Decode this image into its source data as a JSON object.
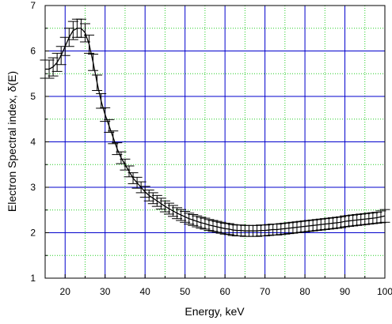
{
  "chart_data": {
    "type": "line",
    "xlabel": "Energy, keV",
    "ylabel": "Electron Spectral index, δ(E)",
    "xlim": [
      15,
      100
    ],
    "ylim": [
      1,
      7
    ],
    "x_ticks": [
      20,
      30,
      40,
      50,
      60,
      70,
      80,
      90,
      100
    ],
    "y_ticks": [
      1,
      2,
      3,
      4,
      5,
      6,
      7
    ],
    "x_tick_labels": [
      "20",
      "30",
      "40",
      "50",
      "60",
      "70",
      "80",
      "90",
      "100"
    ],
    "y_tick_labels": [
      "1",
      "2",
      "3",
      "4",
      "5",
      "6",
      "7"
    ],
    "grid": {
      "major": true,
      "minor": true,
      "major_color": "#0000cc",
      "minor_color": "#22cc22"
    },
    "colors": {
      "line": "#000000",
      "error_bars": "#000000",
      "axes": "#000000"
    },
    "series": [
      {
        "x": [
          15,
          16,
          17,
          18,
          19,
          20,
          21,
          22,
          23,
          24,
          25,
          26,
          27,
          28,
          29,
          30,
          31,
          32,
          33,
          34,
          35,
          36,
          37,
          38,
          39,
          40,
          41,
          42,
          43,
          44,
          45,
          46,
          47,
          48,
          49,
          50,
          51,
          52,
          53,
          54,
          55,
          56,
          57,
          58,
          59,
          60,
          61,
          62,
          63,
          64,
          65,
          66,
          67,
          68,
          69,
          70,
          71,
          72,
          73,
          74,
          75,
          76,
          77,
          78,
          79,
          80,
          81,
          82,
          83,
          84,
          85,
          86,
          87,
          88,
          89,
          90,
          91,
          92,
          93,
          94,
          95,
          96,
          97,
          98,
          99,
          100
        ],
        "y": [
          5.6,
          5.6,
          5.65,
          5.75,
          5.9,
          6.1,
          6.3,
          6.45,
          6.5,
          6.5,
          6.4,
          6.15,
          5.75,
          5.3,
          4.9,
          4.6,
          4.35,
          4.1,
          3.85,
          3.65,
          3.5,
          3.35,
          3.2,
          3.1,
          3.0,
          2.9,
          2.82,
          2.76,
          2.7,
          2.64,
          2.58,
          2.53,
          2.48,
          2.43,
          2.39,
          2.35,
          2.31,
          2.28,
          2.25,
          2.22,
          2.2,
          2.17,
          2.15,
          2.13,
          2.11,
          2.09,
          2.08,
          2.06,
          2.05,
          2.05,
          2.04,
          2.04,
          2.04,
          2.04,
          2.05,
          2.05,
          2.06,
          2.07,
          2.07,
          2.08,
          2.09,
          2.1,
          2.11,
          2.12,
          2.13,
          2.14,
          2.15,
          2.16,
          2.17,
          2.18,
          2.19,
          2.2,
          2.21,
          2.22,
          2.23,
          2.25,
          2.26,
          2.27,
          2.28,
          2.29,
          2.3,
          2.31,
          2.32,
          2.33,
          2.35,
          2.37
        ],
        "yerr": [
          0.2,
          0.2,
          0.2,
          0.2,
          0.2,
          0.2,
          0.2,
          0.2,
          0.2,
          0.2,
          0.2,
          0.2,
          0.18,
          0.17,
          0.16,
          0.15,
          0.14,
          0.14,
          0.13,
          0.13,
          0.12,
          0.12,
          0.12,
          0.12,
          0.12,
          0.12,
          0.12,
          0.12,
          0.12,
          0.12,
          0.12,
          0.12,
          0.12,
          0.12,
          0.12,
          0.12,
          0.12,
          0.12,
          0.12,
          0.12,
          0.12,
          0.12,
          0.12,
          0.12,
          0.12,
          0.12,
          0.12,
          0.12,
          0.12,
          0.12,
          0.12,
          0.12,
          0.12,
          0.12,
          0.12,
          0.12,
          0.12,
          0.12,
          0.12,
          0.12,
          0.12,
          0.12,
          0.12,
          0.12,
          0.12,
          0.12,
          0.12,
          0.12,
          0.12,
          0.12,
          0.12,
          0.12,
          0.12,
          0.12,
          0.12,
          0.12,
          0.12,
          0.12,
          0.12,
          0.12,
          0.12,
          0.12,
          0.12,
          0.12,
          0.13,
          0.14
        ]
      }
    ]
  }
}
